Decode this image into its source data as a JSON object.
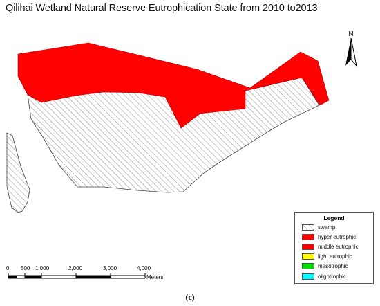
{
  "title": "Qilihai Wetland Natural Reserve Eutrophication State from 2010 to2013",
  "north_label": "N",
  "legend": {
    "title": "Legend",
    "items": [
      {
        "label": "swamp",
        "pattern": "hatch",
        "color": "#ffffff"
      },
      {
        "label": "hyper eutrophic",
        "color": "#ff0000"
      },
      {
        "label": "middle eutrophic",
        "color": "#ff0000"
      },
      {
        "label": "light eutrophic",
        "color": "#ffff00"
      },
      {
        "label": "mesotrophic",
        "color": "#00dd00"
      },
      {
        "label": "oilgotrophic",
        "color": "#00ffff"
      }
    ]
  },
  "scale_bar": {
    "ticks": [
      "0",
      "500",
      "1,000",
      "2,000",
      "3,000",
      "4,000"
    ],
    "units": "Meters"
  },
  "caption": "(c)",
  "colors": {
    "eutrophic_zone": "#ff0000",
    "hatch": "#666666"
  }
}
